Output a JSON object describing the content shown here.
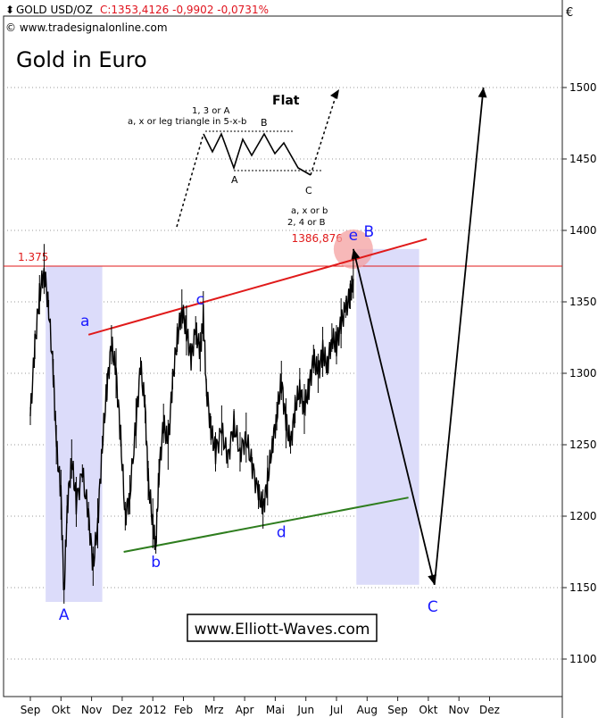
{
  "header": {
    "symbol": "GOLD USD/OZ",
    "quote": "C:1353,4126 -0,9902 -0,0731%",
    "source": "© www.tradesignalonline.com",
    "title": "Gold in Euro",
    "currency_symbol": "€"
  },
  "watermark": "www.Elliott-Waves.com",
  "colors": {
    "price": "#000000",
    "quote": "#e0141e",
    "resistance": "#e01a1a",
    "support": "#2e7d1e",
    "wave_label": "#1a1aff",
    "shade": "#dcdcfa",
    "marker": "#f4a0a0",
    "grid": "#9a9a9a"
  },
  "chart_data": {
    "type": "line",
    "xlabel": "",
    "ylabel": "",
    "x_ticks": [
      "Sep",
      "Okt",
      "Nov",
      "Dez",
      "2012",
      "Feb",
      "Mrz",
      "Apr",
      "Mai",
      "Jun",
      "Jul",
      "Aug",
      "Sep",
      "Okt",
      "Nov",
      "Dez"
    ],
    "y_ticks": [
      1100,
      1150,
      1200,
      1250,
      1300,
      1350,
      1400,
      1450,
      1500
    ],
    "ylim": [
      1060,
      1570
    ],
    "grid": "horizontal dotted",
    "series": [
      {
        "points": [
          [
            0,
            1270
          ],
          [
            0.15,
            1320
          ],
          [
            0.3,
            1355
          ],
          [
            0.45,
            1373
          ],
          [
            0.6,
            1345
          ],
          [
            0.75,
            1300
          ],
          [
            0.85,
            1250
          ],
          [
            1.0,
            1215
          ],
          [
            1.1,
            1145
          ],
          [
            1.2,
            1205
          ],
          [
            1.35,
            1240
          ],
          [
            1.5,
            1210
          ],
          [
            1.7,
            1230
          ],
          [
            1.9,
            1200
          ],
          [
            2.05,
            1165
          ],
          [
            2.2,
            1195
          ],
          [
            2.35,
            1250
          ],
          [
            2.5,
            1290
          ],
          [
            2.65,
            1320
          ],
          [
            2.8,
            1300
          ],
          [
            2.95,
            1255
          ],
          [
            3.1,
            1200
          ],
          [
            3.25,
            1215
          ],
          [
            3.45,
            1265
          ],
          [
            3.6,
            1305
          ],
          [
            3.75,
            1275
          ],
          [
            3.85,
            1225
          ],
          [
            4.0,
            1195
          ],
          [
            4.1,
            1180
          ],
          [
            4.2,
            1230
          ],
          [
            4.35,
            1265
          ],
          [
            4.5,
            1250
          ],
          [
            4.65,
            1295
          ],
          [
            4.8,
            1325
          ],
          [
            4.95,
            1345
          ],
          [
            5.1,
            1330
          ],
          [
            5.25,
            1310
          ],
          [
            5.4,
            1330
          ],
          [
            5.55,
            1315
          ],
          [
            5.65,
            1340
          ],
          [
            5.75,
            1290
          ],
          [
            5.9,
            1260
          ],
          [
            6.05,
            1245
          ],
          [
            6.25,
            1260
          ],
          [
            6.45,
            1240
          ],
          [
            6.65,
            1265
          ],
          [
            6.85,
            1245
          ],
          [
            7.05,
            1255
          ],
          [
            7.25,
            1235
          ],
          [
            7.45,
            1215
          ],
          [
            7.6,
            1205
          ],
          [
            7.75,
            1225
          ],
          [
            7.9,
            1250
          ],
          [
            8.05,
            1270
          ],
          [
            8.2,
            1295
          ],
          [
            8.35,
            1265
          ],
          [
            8.5,
            1250
          ],
          [
            8.65,
            1275
          ],
          [
            8.8,
            1290
          ],
          [
            8.95,
            1275
          ],
          [
            9.1,
            1290
          ],
          [
            9.25,
            1310
          ],
          [
            9.4,
            1300
          ],
          [
            9.55,
            1315
          ],
          [
            9.7,
            1305
          ],
          [
            9.85,
            1325
          ],
          [
            10.0,
            1320
          ],
          [
            10.15,
            1335
          ],
          [
            10.3,
            1345
          ],
          [
            10.45,
            1355
          ],
          [
            10.55,
            1366
          ]
        ]
      }
    ],
    "levels": [
      {
        "label": "1.375",
        "value": 1375
      },
      {
        "label": "1386,876",
        "value": 1386.876
      }
    ],
    "trendlines": [
      {
        "name": "resistance",
        "from": [
          1.9,
          1327
        ],
        "to": [
          12.95,
          1394
        ]
      },
      {
        "name": "support",
        "from": [
          3.05,
          1175
        ],
        "to": [
          12.35,
          1213
        ]
      }
    ],
    "wave_labels": [
      {
        "text": "A",
        "x": 1.1,
        "y": 1145
      },
      {
        "text": "a",
        "x": 1.9,
        "y": 1327
      },
      {
        "text": "b",
        "x": 4.1,
        "y": 1178
      },
      {
        "text": "c",
        "x": 5.55,
        "y": 1342
      },
      {
        "text": "d",
        "x": 8.2,
        "y": 1199
      },
      {
        "text": "e",
        "x": 10.55,
        "y": 1387
      },
      {
        "text": "B",
        "x": 10.65,
        "y": 1388
      },
      {
        "text": "C",
        "x": 13.2,
        "y": 1152
      }
    ],
    "projection": [
      [
        10.55,
        1387
      ],
      [
        13.2,
        1152
      ],
      [
        14.8,
        1500
      ]
    ],
    "shaded_zones": [
      {
        "from": [
          0.5,
          1140
        ],
        "to": [
          2.35,
          1375
        ]
      },
      {
        "from": [
          10.65,
          1152
        ],
        "to": [
          12.7,
          1387
        ]
      }
    ],
    "inset": {
      "title": "Flat",
      "note_top_1": "1, 3 or A",
      "note_top_2": "a, x or leg triangle in 5-x-b",
      "label_A": "A",
      "label_B": "B",
      "label_C": "C",
      "note_bottom_1": "a, x or b",
      "note_bottom_2": "2, 4 or B"
    }
  }
}
